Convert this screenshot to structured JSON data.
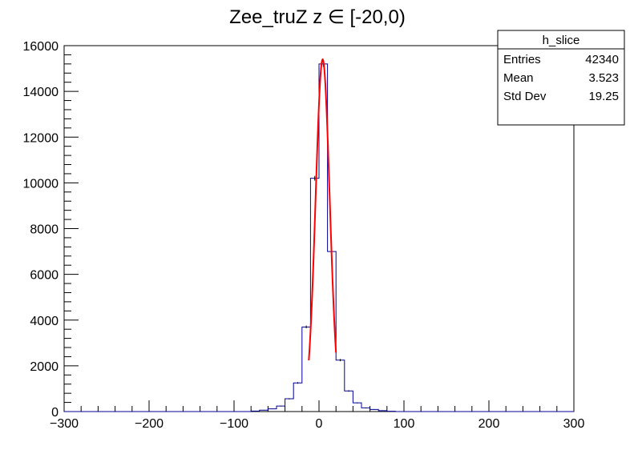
{
  "chart_data": {
    "type": "histogram",
    "title": "Zee_truZ z  ∈ [-20,0)",
    "xlabel": "",
    "ylabel": "",
    "xlim": [
      -300,
      300
    ],
    "ylim": [
      0,
      16000
    ],
    "x_ticks": [
      "−300",
      "−200",
      "−100",
      "0",
      "100",
      "200",
      "300"
    ],
    "y_ticks": [
      "0",
      "2000",
      "4000",
      "6000",
      "8000",
      "10000",
      "12000",
      "14000",
      "16000"
    ],
    "bin_width": 10,
    "bins": [
      {
        "x": -80,
        "y": 20
      },
      {
        "x": -70,
        "y": 60
      },
      {
        "x": -60,
        "y": 120
      },
      {
        "x": -50,
        "y": 240
      },
      {
        "x": -40,
        "y": 560
      },
      {
        "x": -30,
        "y": 1250
      },
      {
        "x": -20,
        "y": 3700
      },
      {
        "x": -10,
        "y": 10200
      },
      {
        "x": 0,
        "y": 15200
      },
      {
        "x": 10,
        "y": 7000
      },
      {
        "x": 20,
        "y": 2250
      },
      {
        "x": 30,
        "y": 900
      },
      {
        "x": 40,
        "y": 380
      },
      {
        "x": 50,
        "y": 160
      },
      {
        "x": 60,
        "y": 90
      },
      {
        "x": 70,
        "y": 40
      },
      {
        "x": 80,
        "y": 15
      }
    ],
    "fit": {
      "type": "gaussian",
      "range": [
        -12,
        20
      ],
      "amplitude": 15400,
      "mean": 4.3,
      "sigma": 8.3,
      "color": "#ff0000"
    },
    "histogram_color": "#000099",
    "stats_box": {
      "title": "h_slice",
      "rows": [
        {
          "label": "Entries",
          "value": "42340"
        },
        {
          "label": "Mean",
          "value": "3.523"
        },
        {
          "label": "Std Dev",
          "value": "19.25"
        }
      ]
    }
  }
}
